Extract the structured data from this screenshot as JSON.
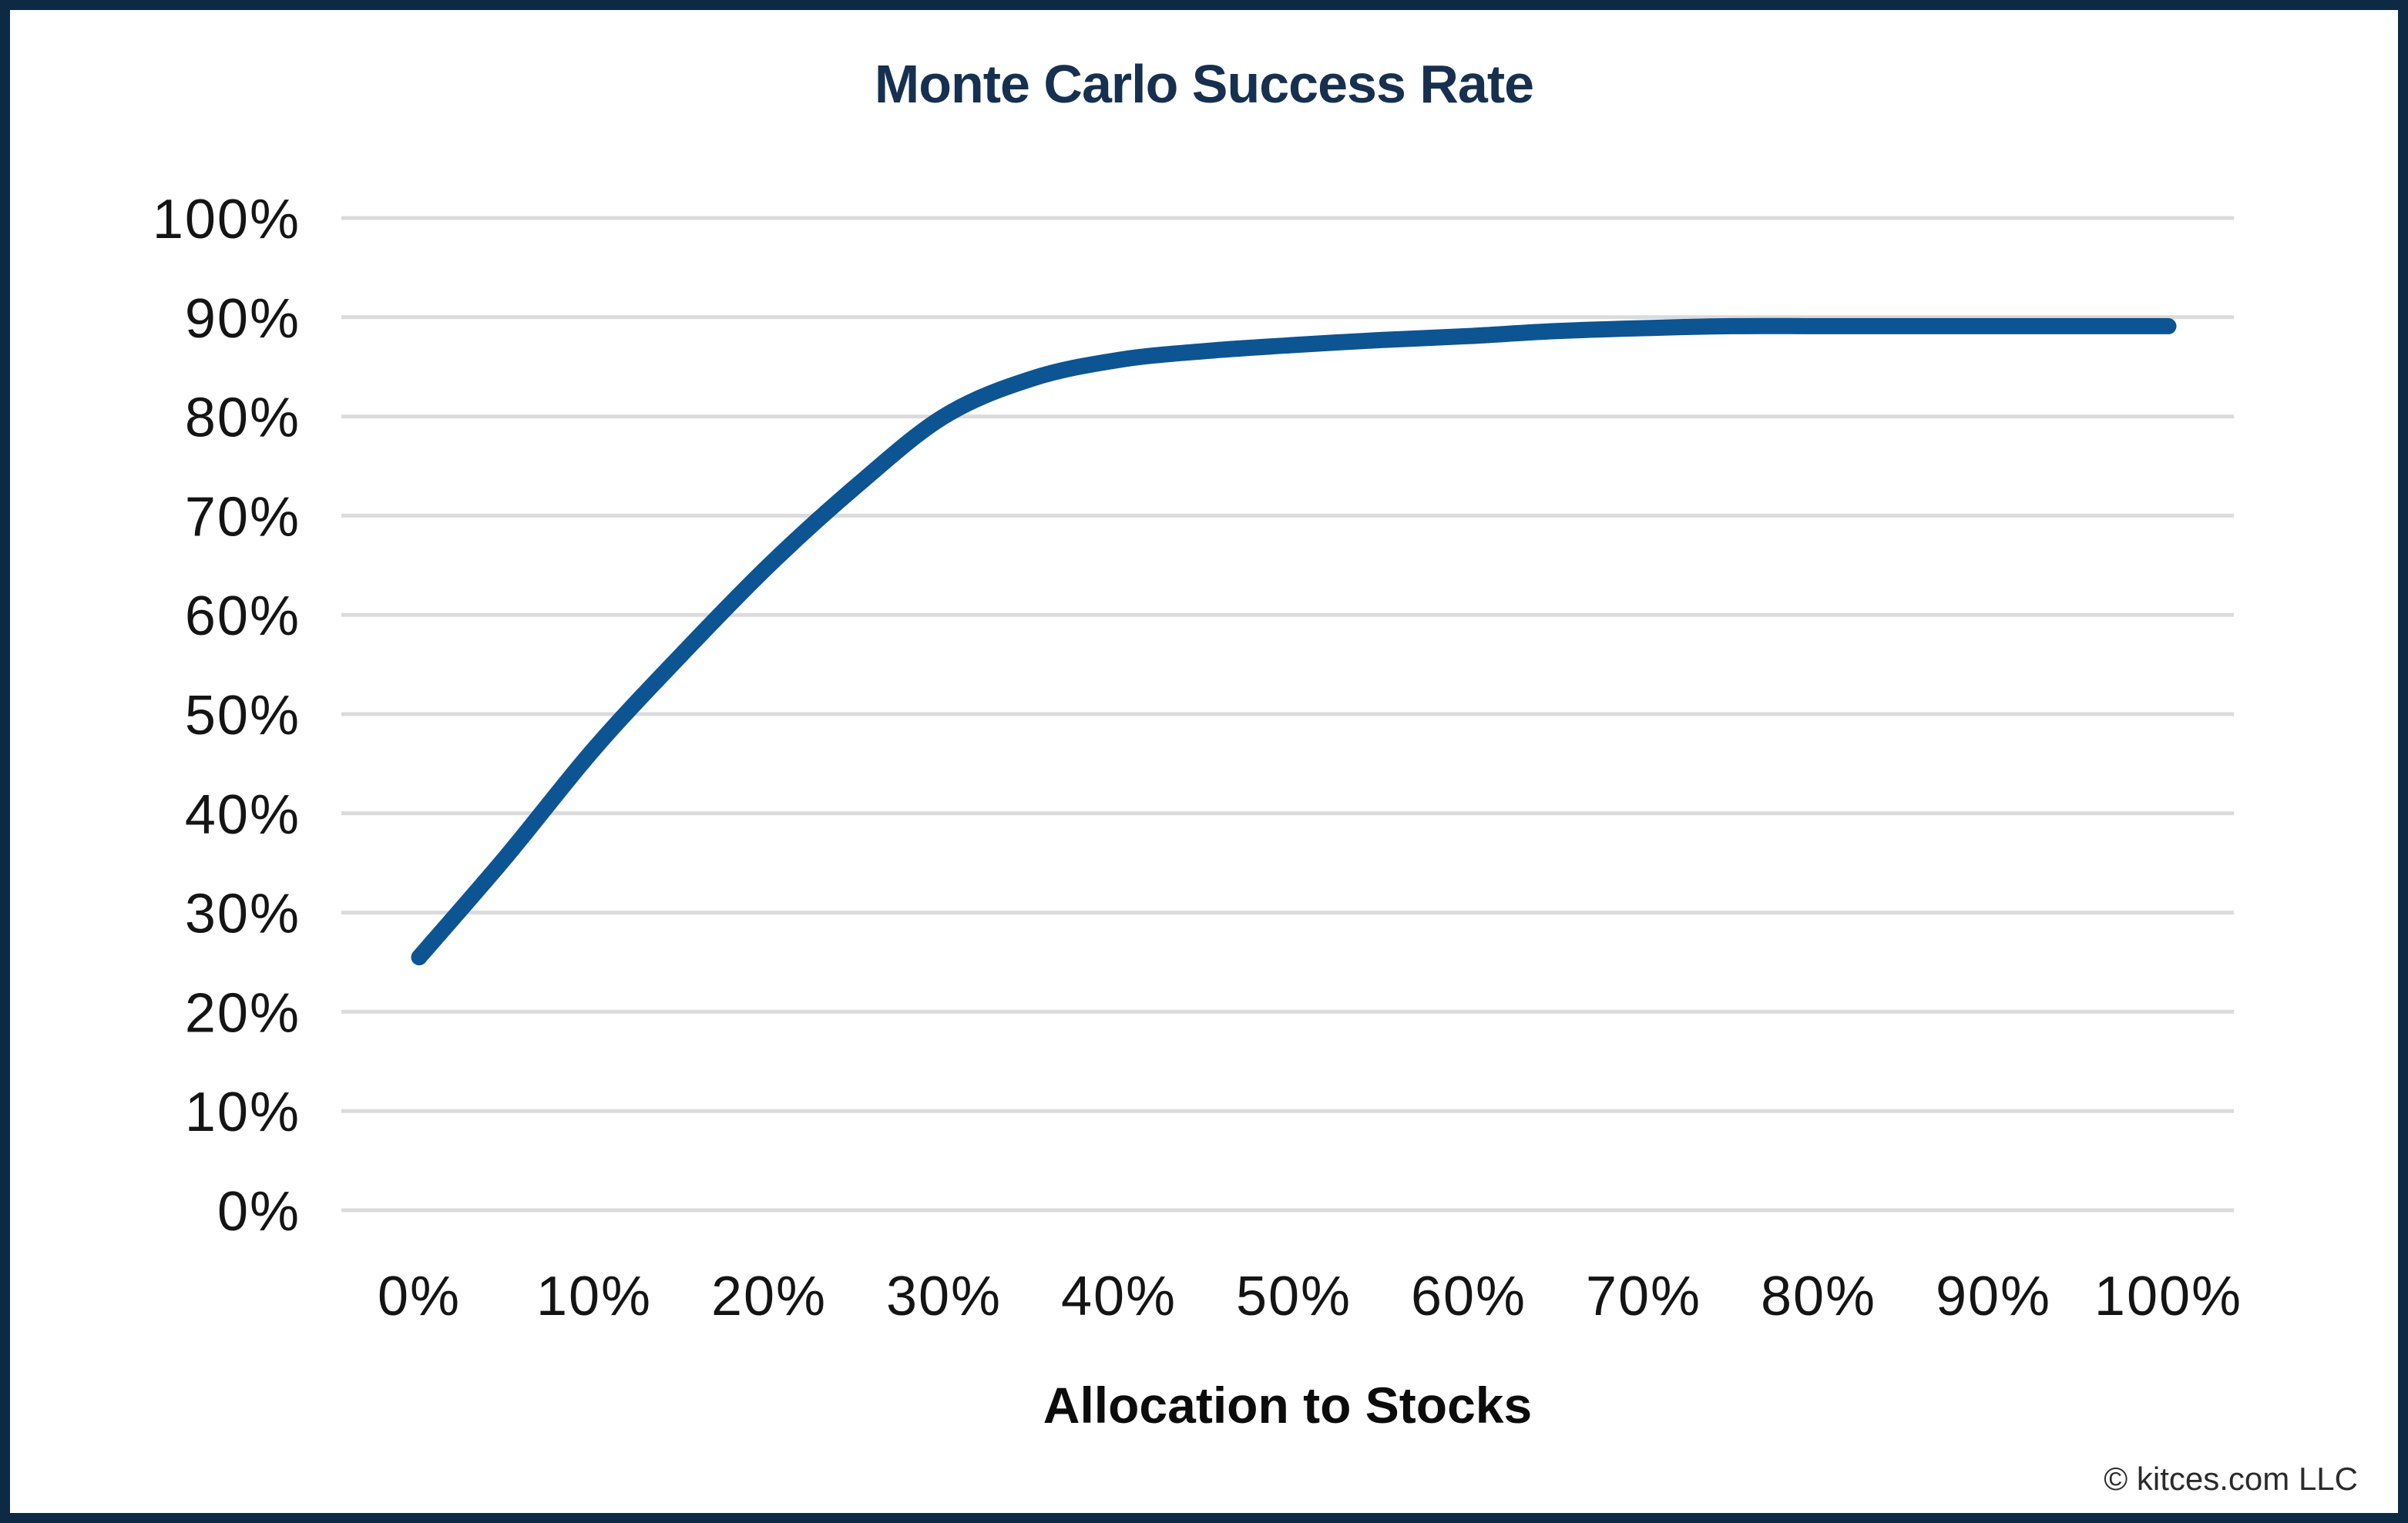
{
  "figure": {
    "title": "Monte Carlo Success Rate",
    "footer": "© kitces.com LLC"
  },
  "chart_data": {
    "type": "line",
    "title": "Monte Carlo Success Rate",
    "xlabel": "Allocation to Stocks",
    "ylabel": "",
    "xlim": [
      0,
      100
    ],
    "ylim": [
      0,
      100
    ],
    "x_tick_labels": [
      "0%",
      "10%",
      "20%",
      "30%",
      "40%",
      "50%",
      "60%",
      "70%",
      "80%",
      "90%",
      "100%"
    ],
    "y_tick_labels": [
      "0%",
      "10%",
      "20%",
      "30%",
      "40%",
      "50%",
      "60%",
      "70%",
      "80%",
      "90%",
      "100%"
    ],
    "grid": "horizontal",
    "legend_position": "none",
    "series": [
      {
        "name": "Monte Carlo Success Rate",
        "color": "#0D5492",
        "x": [
          0,
          5,
          10,
          15,
          20,
          25,
          30,
          35,
          40,
          45,
          50,
          55,
          60,
          65,
          70,
          75,
          80,
          85,
          90,
          95,
          100
        ],
        "y": [
          25.5,
          35.7,
          46.5,
          56,
          65,
          73,
          80,
          83.8,
          85.7,
          86.6,
          87.2,
          87.7,
          88.1,
          88.6,
          88.9,
          89.1,
          89.1,
          89.1,
          89.1,
          89.1,
          89.1
        ]
      }
    ]
  },
  "colors": {
    "border_navy": "#0D2944",
    "title_navy": "#17304F",
    "line_blue": "#0D5492",
    "gridline_gray": "#DBDBDB",
    "tick_label": "#141414",
    "axis_title": "#0C0C0C",
    "footer_text": "#2B2B2B",
    "background": "#FFFFFF"
  }
}
